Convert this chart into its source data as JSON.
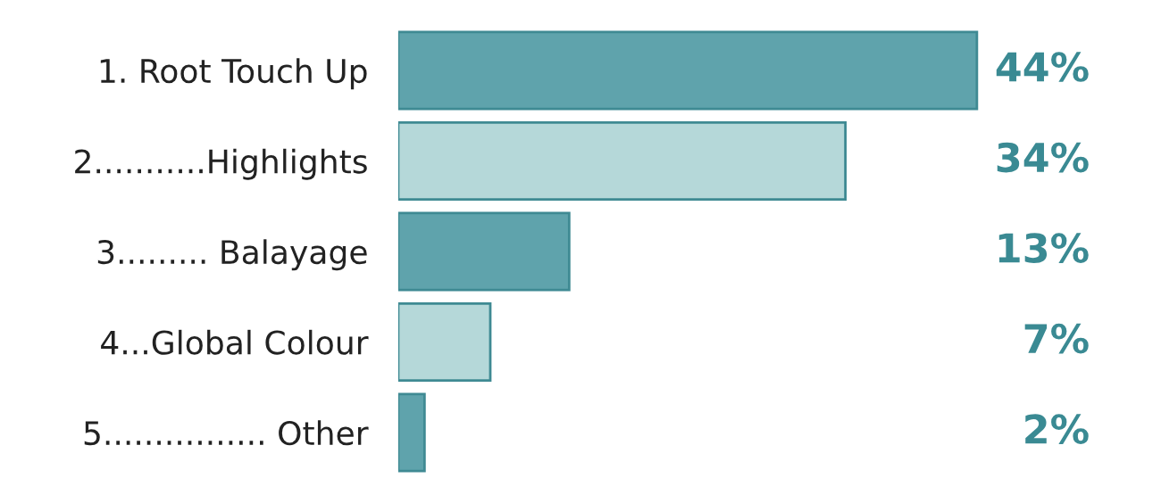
{
  "chart_data": {
    "type": "bar",
    "orientation": "horizontal",
    "categories": [
      "1. Root Touch Up",
      "2...........Highlights",
      "3......... Balayage",
      "4...Global Colour",
      "5................ Other"
    ],
    "values": [
      44,
      34,
      13,
      7,
      2
    ],
    "colors": [
      "#5fa3ac",
      "#b5d8d9",
      "#5fa3ac",
      "#b5d8d9",
      "#5fa3ac"
    ],
    "value_labels": [
      "44%",
      "34%",
      "13%",
      "7%",
      "2%"
    ]
  }
}
